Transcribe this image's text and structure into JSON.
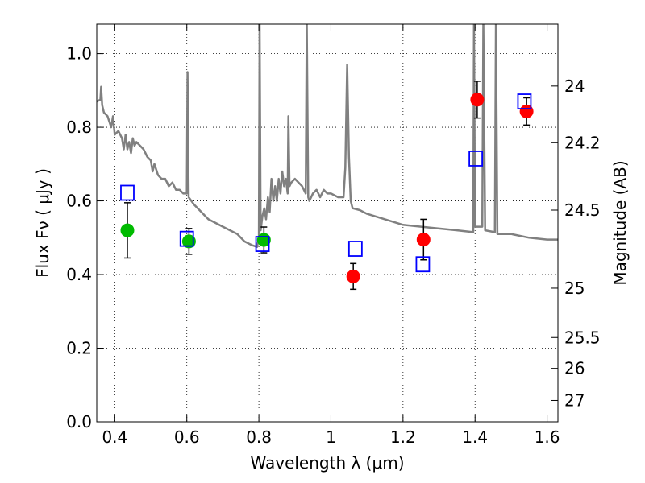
{
  "chart_data": {
    "type": "scatter",
    "xlabel": "Wavelength  λ (μm)",
    "ylabel": "Flux  Fν  ( μJy )",
    "ylabel_right": "Magnitude (AB)",
    "xlim": [
      0.35,
      1.63
    ],
    "ylim": [
      0.0,
      1.08
    ],
    "x_ticks": [
      0.4,
      0.6,
      0.8,
      1.0,
      1.2,
      1.4,
      1.6
    ],
    "x_tick_labels": [
      "0.4",
      "0.6",
      "0.8",
      "1",
      "1.2",
      "1.4",
      "1.6"
    ],
    "y_ticks": [
      0.0,
      0.2,
      0.4,
      0.6,
      0.8,
      1.0
    ],
    "y_tick_labels": [
      "0.0",
      "0.2",
      "0.4",
      "0.6",
      "0.8",
      "1.0"
    ],
    "right_ticks": [
      {
        "label": "24",
        "flux": 0.912
      },
      {
        "label": "24.2",
        "flux": 0.758
      },
      {
        "label": "24.5",
        "flux": 0.575
      },
      {
        "label": "25",
        "flux": 0.363
      },
      {
        "label": "25.5",
        "flux": 0.229
      },
      {
        "label": "26",
        "flux": 0.145
      },
      {
        "label": "27",
        "flux": 0.058
      }
    ],
    "grid": true,
    "colors": {
      "green": "#00bb00",
      "red": "#ff0000",
      "model_square": "#0000ff",
      "sed": "#808080",
      "errorbar": "#000000"
    },
    "series": [
      {
        "kind": "observed_optical",
        "marker": "circle",
        "color": "green",
        "points": [
          {
            "x": 0.435,
            "y": 0.52,
            "err": 0.075
          },
          {
            "x": 0.606,
            "y": 0.49,
            "err": 0.035
          },
          {
            "x": 0.814,
            "y": 0.494,
            "err": 0.035
          }
        ]
      },
      {
        "kind": "observed_nir",
        "marker": "circle",
        "color": "red",
        "points": [
          {
            "x": 1.062,
            "y": 0.395,
            "err": 0.035
          },
          {
            "x": 1.257,
            "y": 0.495,
            "err": 0.055
          },
          {
            "x": 1.406,
            "y": 0.875,
            "err": 0.05
          },
          {
            "x": 1.543,
            "y": 0.843,
            "err": 0.037
          }
        ]
      },
      {
        "kind": "model",
        "marker": "square",
        "color": "model_square",
        "points": [
          {
            "x": 0.435,
            "y": 0.622
          },
          {
            "x": 0.6,
            "y": 0.497
          },
          {
            "x": 0.81,
            "y": 0.483
          },
          {
            "x": 1.068,
            "y": 0.47
          },
          {
            "x": 1.255,
            "y": 0.428
          },
          {
            "x": 1.402,
            "y": 0.715
          },
          {
            "x": 1.537,
            "y": 0.87
          }
        ]
      },
      {
        "kind": "sed",
        "type": "line",
        "color": "sed",
        "points": [
          [
            0.35,
            0.87
          ],
          [
            0.36,
            0.875
          ],
          [
            0.362,
            0.91
          ],
          [
            0.365,
            0.86
          ],
          [
            0.37,
            0.84
          ],
          [
            0.38,
            0.83
          ],
          [
            0.39,
            0.8
          ],
          [
            0.395,
            0.83
          ],
          [
            0.4,
            0.78
          ],
          [
            0.41,
            0.79
          ],
          [
            0.42,
            0.77
          ],
          [
            0.425,
            0.74
          ],
          [
            0.43,
            0.78
          ],
          [
            0.435,
            0.74
          ],
          [
            0.44,
            0.76
          ],
          [
            0.445,
            0.73
          ],
          [
            0.45,
            0.77
          ],
          [
            0.455,
            0.75
          ],
          [
            0.46,
            0.76
          ],
          [
            0.47,
            0.75
          ],
          [
            0.48,
            0.74
          ],
          [
            0.49,
            0.72
          ],
          [
            0.5,
            0.71
          ],
          [
            0.505,
            0.68
          ],
          [
            0.51,
            0.7
          ],
          [
            0.52,
            0.67
          ],
          [
            0.53,
            0.66
          ],
          [
            0.54,
            0.66
          ],
          [
            0.55,
            0.64
          ],
          [
            0.56,
            0.65
          ],
          [
            0.57,
            0.63
          ],
          [
            0.58,
            0.63
          ],
          [
            0.59,
            0.62
          ],
          [
            0.6,
            0.62
          ],
          [
            0.602,
            0.95
          ],
          [
            0.605,
            0.61
          ],
          [
            0.62,
            0.59
          ],
          [
            0.64,
            0.57
          ],
          [
            0.66,
            0.55
          ],
          [
            0.68,
            0.54
          ],
          [
            0.7,
            0.53
          ],
          [
            0.72,
            0.52
          ],
          [
            0.74,
            0.51
          ],
          [
            0.76,
            0.49
          ],
          [
            0.78,
            0.48
          ],
          [
            0.795,
            0.475
          ],
          [
            0.8,
            0.5
          ],
          [
            0.802,
            1.09
          ],
          [
            0.805,
            0.52
          ],
          [
            0.81,
            0.56
          ],
          [
            0.815,
            0.58
          ],
          [
            0.82,
            0.55
          ],
          [
            0.825,
            0.61
          ],
          [
            0.83,
            0.57
          ],
          [
            0.835,
            0.66
          ],
          [
            0.84,
            0.6
          ],
          [
            0.845,
            0.64
          ],
          [
            0.85,
            0.6
          ],
          [
            0.855,
            0.66
          ],
          [
            0.86,
            0.62
          ],
          [
            0.865,
            0.68
          ],
          [
            0.87,
            0.64
          ],
          [
            0.875,
            0.66
          ],
          [
            0.88,
            0.62
          ],
          [
            0.882,
            0.83
          ],
          [
            0.885,
            0.64
          ],
          [
            0.89,
            0.65
          ],
          [
            0.9,
            0.66
          ],
          [
            0.91,
            0.65
          ],
          [
            0.92,
            0.64
          ],
          [
            0.93,
            0.62
          ],
          [
            0.933,
            1.09
          ],
          [
            0.937,
            0.61
          ],
          [
            0.94,
            0.6
          ],
          [
            0.95,
            0.62
          ],
          [
            0.96,
            0.63
          ],
          [
            0.97,
            0.61
          ],
          [
            0.98,
            0.63
          ],
          [
            0.99,
            0.62
          ],
          [
            1.0,
            0.62
          ],
          [
            1.02,
            0.61
          ],
          [
            1.035,
            0.61
          ],
          [
            1.04,
            0.69
          ],
          [
            1.045,
            0.97
          ],
          [
            1.05,
            0.72
          ],
          [
            1.055,
            0.6
          ],
          [
            1.06,
            0.58
          ],
          [
            1.08,
            0.575
          ],
          [
            1.1,
            0.565
          ],
          [
            1.15,
            0.55
          ],
          [
            1.2,
            0.535
          ],
          [
            1.25,
            0.53
          ],
          [
            1.3,
            0.525
          ],
          [
            1.35,
            0.52
          ],
          [
            1.395,
            0.515
          ],
          [
            1.397,
            1.09
          ],
          [
            1.4,
            0.53
          ],
          [
            1.42,
            0.53
          ],
          [
            1.423,
            1.09
          ],
          [
            1.428,
            0.52
          ],
          [
            1.455,
            0.515
          ],
          [
            1.458,
            1.09
          ],
          [
            1.462,
            0.51
          ],
          [
            1.5,
            0.51
          ],
          [
            1.55,
            0.5
          ],
          [
            1.6,
            0.495
          ],
          [
            1.63,
            0.495
          ]
        ]
      }
    ]
  }
}
